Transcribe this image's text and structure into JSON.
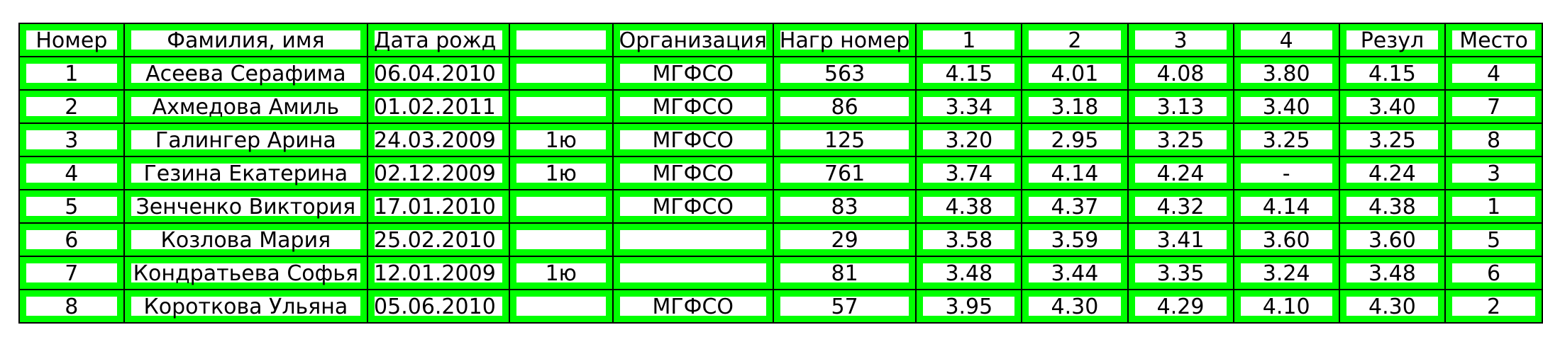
{
  "header": [
    "Номер",
    "Фамилия, имя",
    "Дата рожд",
    "",
    "Организация",
    "Нагр номер",
    "1",
    "2",
    "3",
    "4",
    "Резул",
    "Место"
  ],
  "rows": [
    [
      "1",
      "Асеева Серафима",
      "06.04.2010",
      "",
      "МГФСО",
      "563",
      "4.15",
      "4.01",
      "4.08",
      "3.80",
      "4.15",
      "4"
    ],
    [
      "2",
      "Ахмедова Амиль",
      "01.02.2011",
      "",
      "МГФСО",
      "86",
      "3.34",
      "3.18",
      "3.13",
      "3.40",
      "3.40",
      "7"
    ],
    [
      "3",
      "Галингер Арина",
      "24.03.2009",
      "1ю",
      "МГФСО",
      "125",
      "3.20",
      "2.95",
      "3.25",
      "3.25",
      "3.25",
      "8"
    ],
    [
      "4",
      "Гезина Екатерина",
      "02.12.2009",
      "1ю",
      "МГФСО",
      "761",
      "3.74",
      "4.14",
      "4.24",
      "-",
      "4.24",
      "3"
    ],
    [
      "5",
      "Зенченко Виктория",
      "17.01.2010",
      "",
      "МГФСО",
      "83",
      "4.38",
      "4.37",
      "4.32",
      "4.14",
      "4.38",
      "1"
    ],
    [
      "6",
      "Козлова Мария",
      "25.02.2010",
      "",
      "",
      "29",
      "3.58",
      "3.59",
      "3.41",
      "3.60",
      "3.60",
      "5"
    ],
    [
      "7",
      "Кондратьева Софья",
      "12.01.2009",
      "1ю",
      "",
      "81",
      "3.48",
      "3.44",
      "3.35",
      "3.24",
      "3.48",
      "6"
    ],
    [
      "8",
      "Короткова Ульяна",
      "05.06.2010",
      "",
      "МГФСО",
      "57",
      "3.95",
      "4.30",
      "4.29",
      "4.10",
      "4.30",
      "2"
    ]
  ]
}
